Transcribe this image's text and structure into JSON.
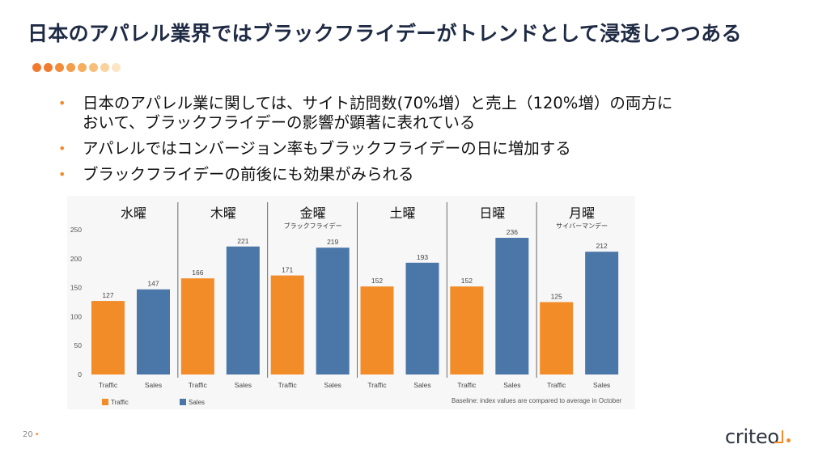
{
  "slide": {
    "title": "日本のアパレル業界ではブラックフライデーがトレンドとして浸透しつつある",
    "page_number": "20",
    "page_number_dot": "•",
    "logo_text": "criteo"
  },
  "accent_colors": {
    "orange": "#f28c28",
    "blue": "#4a76a8",
    "title": "#1f2a44"
  },
  "dot_colors": [
    "#f07a30",
    "#f07a30",
    "#f28c3a",
    "#f49d4a",
    "#f6ad5e",
    "#f8bf7a",
    "#fad39c",
    "#fce4c4"
  ],
  "bullets": [
    {
      "mark": "•",
      "text": "日本のアパレル業に関しては、サイト訪問数(70%増）と売上（120%増）の両方に\nおいて、ブラックフライデーの影響が顕著に表れている"
    },
    {
      "mark": "•",
      "text": "アパレルではコンバージョン率もブラックフライデーの日に増加する"
    },
    {
      "mark": "•",
      "text": "ブラックフライデーの前後にも効果がみられる"
    }
  ],
  "chart_data": {
    "type": "bar",
    "days": [
      {
        "day": "水曜",
        "note": "",
        "traffic": 127,
        "sales": 147
      },
      {
        "day": "木曜",
        "note": "",
        "traffic": 166,
        "sales": 221
      },
      {
        "day": "金曜",
        "note": "ブラックフライデー",
        "traffic": 171,
        "sales": 219
      },
      {
        "day": "土曜",
        "note": "",
        "traffic": 152,
        "sales": 193
      },
      {
        "day": "日曜",
        "note": "",
        "traffic": 152,
        "sales": 236
      },
      {
        "day": "月曜",
        "note": "サイバーマンデー",
        "traffic": 125,
        "sales": 212
      }
    ],
    "series": [
      {
        "name": "Traffic",
        "color": "#f28c28"
      },
      {
        "name": "Sales",
        "color": "#4a76a8"
      }
    ],
    "y_ticks": [
      0,
      50,
      100,
      150,
      200,
      250
    ],
    "ylim": [
      0,
      250
    ],
    "grid": false,
    "legend_placement": "bottom-left",
    "footnote": "Baseline: index values are compared to average in October"
  }
}
